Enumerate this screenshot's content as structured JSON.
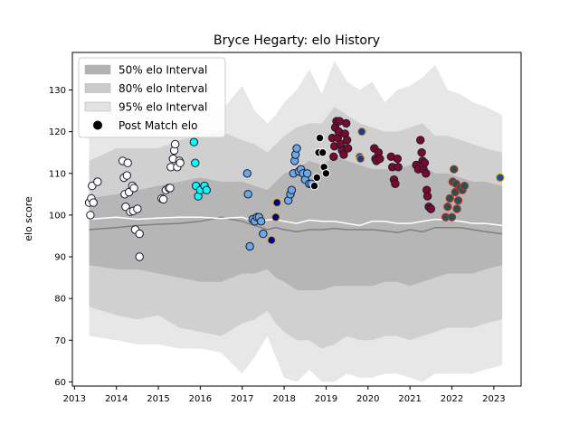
{
  "chart_data": {
    "type": "scatter",
    "title": "Bryce Hegarty: elo History",
    "xlabel": "",
    "ylabel": "elo score",
    "xlim": [
      2012.95,
      2023.65
    ],
    "ylim": [
      59,
      139
    ],
    "xticks": [
      2013,
      2014,
      2015,
      2016,
      2017,
      2018,
      2019,
      2020,
      2021,
      2022,
      2023
    ],
    "yticks": [
      60,
      70,
      80,
      90,
      100,
      110,
      120,
      130
    ],
    "grid": false,
    "legend_position": "top-left",
    "legend": [
      {
        "label": "50% elo Interval",
        "key": "band50"
      },
      {
        "label": "80% elo Interval",
        "key": "band80"
      },
      {
        "label": "95% elo Interval",
        "key": "band95"
      },
      {
        "label": "Post Match elo",
        "key": "marker"
      }
    ],
    "colors": {
      "band95": "#e3e3e3",
      "band80": "#cbcbcb",
      "band50": "#b2b2b2",
      "median_line": "#808080",
      "mean_line": "#ffffff",
      "marker_edge_default": "#1a1a2e",
      "marker_edge_alt": "#d4a017"
    },
    "bands": {
      "x": [
        2013.35,
        2014.0,
        2014.5,
        2015.0,
        2015.5,
        2016.0,
        2016.5,
        2017.0,
        2017.3,
        2017.6,
        2017.8,
        2018.0,
        2018.3,
        2018.6,
        2018.9,
        2019.2,
        2019.5,
        2019.8,
        2020.1,
        2020.4,
        2020.7,
        2021.0,
        2021.3,
        2021.6,
        2021.9,
        2022.2,
        2022.5,
        2022.8,
        2023.2
      ],
      "band95_upper": [
        123,
        126,
        125,
        122,
        126,
        128,
        125,
        131,
        125,
        122,
        124,
        127,
        130,
        135,
        129,
        137,
        132,
        130,
        132,
        127,
        130,
        131,
        133,
        136,
        130,
        129,
        127,
        126,
        124
      ],
      "band95_lower": [
        71,
        70,
        69,
        69,
        68,
        68,
        67,
        62,
        66,
        71,
        66,
        61,
        60,
        63,
        60,
        60,
        62,
        61,
        61,
        62,
        62,
        61,
        60,
        62,
        62,
        62,
        62,
        63,
        64
      ],
      "band80_upper": [
        113,
        116,
        116,
        116,
        118,
        119,
        120,
        118,
        117,
        115,
        117,
        119,
        121,
        122,
        122,
        126,
        124,
        122,
        121,
        120,
        120,
        121,
        122,
        119,
        119,
        118,
        117,
        116,
        115
      ],
      "band80_lower": [
        78,
        76,
        75,
        76,
        73,
        72,
        71,
        74,
        75,
        77,
        74,
        72,
        70,
        70,
        68,
        69,
        71,
        70,
        70,
        71,
        71,
        70,
        71,
        72,
        73,
        73,
        73,
        74,
        75
      ],
      "band50_upper": [
        104,
        105,
        106,
        107,
        108,
        109,
        108,
        108,
        107,
        106,
        108,
        110,
        111,
        113,
        112,
        114,
        113,
        112,
        111,
        111,
        111,
        112,
        112,
        110,
        110,
        109,
        108,
        108,
        107
      ],
      "band50_lower": [
        88,
        87,
        87,
        86,
        85,
        84,
        84,
        86,
        86,
        87,
        85,
        84,
        82,
        82,
        82,
        83,
        83,
        83,
        83,
        84,
        84,
        83,
        84,
        85,
        86,
        86,
        86,
        87,
        88
      ]
    },
    "median_line": {
      "x": [
        2013.35,
        2014.0,
        2014.5,
        2015.0,
        2015.5,
        2016.0,
        2016.5,
        2017.0,
        2017.3,
        2017.6,
        2017.8,
        2018.0,
        2018.3,
        2018.6,
        2018.9,
        2019.2,
        2019.5,
        2019.8,
        2020.1,
        2020.4,
        2020.7,
        2021.0,
        2021.3,
        2021.6,
        2021.9,
        2022.2,
        2022.5,
        2022.8,
        2023.2
      ],
      "y": [
        96.5,
        97,
        97.5,
        97.8,
        98,
        98.5,
        99.5,
        98.5,
        97.5,
        96.5,
        97,
        96.5,
        96,
        96.5,
        96.5,
        96.8,
        96.5,
        96.5,
        96.5,
        96.2,
        95.8,
        96.5,
        96,
        97,
        97,
        97,
        96.5,
        96,
        95.5
      ]
    },
    "mean_line": {
      "x": [
        2013.35,
        2014.0,
        2014.5,
        2015.0,
        2015.5,
        2016.0,
        2016.5,
        2017.0,
        2017.3,
        2017.6,
        2017.8,
        2018.0,
        2018.3,
        2018.6,
        2018.9,
        2019.2,
        2019.5,
        2019.8,
        2020.1,
        2020.4,
        2020.7,
        2021.0,
        2021.3,
        2021.6,
        2021.9,
        2022.2,
        2022.5,
        2022.8,
        2023.2
      ],
      "y": [
        99,
        99.5,
        99,
        99.3,
        99.5,
        99.5,
        99.2,
        99.5,
        98.5,
        98.8,
        99,
        98.5,
        98,
        98.8,
        98.5,
        98.5,
        98,
        97.5,
        98.5,
        98.5,
        98,
        98,
        98.5,
        99,
        98.8,
        98.5,
        98,
        98,
        97.5
      ]
    },
    "series": [
      {
        "color": "#ffffff",
        "points": [
          [
            2013.35,
            103
          ],
          [
            2013.38,
            100
          ],
          [
            2013.4,
            104
          ],
          [
            2013.42,
            107
          ],
          [
            2013.45,
            103
          ],
          [
            2013.55,
            108
          ],
          [
            2014.15,
            113
          ],
          [
            2014.18,
            109
          ],
          [
            2014.2,
            105
          ],
          [
            2014.22,
            102
          ],
          [
            2014.25,
            109.5
          ],
          [
            2014.27,
            112.5
          ],
          [
            2014.3,
            105.5
          ],
          [
            2014.33,
            100.8
          ],
          [
            2014.38,
            107
          ],
          [
            2014.4,
            101
          ],
          [
            2014.42,
            106.5
          ],
          [
            2014.45,
            96.5
          ],
          [
            2014.5,
            101.5
          ],
          [
            2014.55,
            95.5
          ],
          [
            2014.55,
            90
          ],
          [
            2015.08,
            104
          ],
          [
            2015.12,
            103.8
          ],
          [
            2015.18,
            106
          ],
          [
            2015.25,
            106.5
          ],
          [
            2015.28,
            106.5
          ],
          [
            2015.3,
            111.5
          ],
          [
            2015.35,
            113.5
          ],
          [
            2015.38,
            115.5
          ],
          [
            2015.4,
            117
          ],
          [
            2015.45,
            111.5
          ],
          [
            2015.5,
            113
          ],
          [
            2015.52,
            112.5
          ]
        ]
      },
      {
        "color": "#00ffff",
        "points": [
          [
            2015.85,
            117.5
          ],
          [
            2015.88,
            112.5
          ],
          [
            2015.9,
            107
          ],
          [
            2015.95,
            104.5
          ],
          [
            2016.0,
            106
          ],
          [
            2016.1,
            107
          ],
          [
            2016.15,
            106
          ]
        ]
      },
      {
        "color": "#6aa8e8",
        "points": [
          [
            2017.12,
            110
          ],
          [
            2017.14,
            105
          ],
          [
            2017.18,
            92.5
          ],
          [
            2017.25,
            99
          ],
          [
            2017.3,
            98.5
          ],
          [
            2017.35,
            99.5
          ],
          [
            2017.4,
            99.5
          ],
          [
            2017.45,
            98.5
          ],
          [
            2017.5,
            95.5
          ],
          [
            2018.1,
            103.5
          ],
          [
            2018.15,
            105
          ],
          [
            2018.18,
            106
          ],
          [
            2018.22,
            110
          ],
          [
            2018.25,
            113
          ],
          [
            2018.27,
            114.5
          ],
          [
            2018.3,
            116
          ],
          [
            2018.35,
            110.5
          ],
          [
            2018.4,
            111
          ],
          [
            2018.45,
            110
          ],
          [
            2018.5,
            108.5
          ],
          [
            2018.55,
            110
          ],
          [
            2018.6,
            107.5
          ],
          [
            2018.65,
            107.5
          ]
        ]
      },
      {
        "color": "#00008b",
        "edge": "#d4a017",
        "points": [
          [
            2017.7,
            94
          ],
          [
            2017.8,
            99.5
          ],
          [
            2017.83,
            103
          ]
        ]
      },
      {
        "color": "#000000",
        "edge": "#ffffff",
        "points": [
          [
            2018.72,
            107
          ],
          [
            2018.78,
            109
          ],
          [
            2018.82,
            115
          ],
          [
            2018.85,
            118.5
          ],
          [
            2018.92,
            115
          ],
          [
            2018.95,
            111.5
          ],
          [
            2019.0,
            110
          ]
        ]
      },
      {
        "color": "#7b0a2a",
        "points": [
          [
            2019.15,
            118.5
          ],
          [
            2019.18,
            114
          ],
          [
            2019.2,
            116.5
          ],
          [
            2019.22,
            121
          ],
          [
            2019.25,
            122.5
          ],
          [
            2019.28,
            118.5
          ],
          [
            2019.3,
            120
          ],
          [
            2019.32,
            122.5
          ],
          [
            2019.35,
            117
          ],
          [
            2019.38,
            115.5
          ],
          [
            2019.42,
            114.5
          ],
          [
            2019.45,
            119.5
          ],
          [
            2019.48,
            122
          ],
          [
            2019.5,
            118
          ],
          [
            2019.52,
            116
          ],
          [
            2020.15,
            116
          ],
          [
            2020.18,
            113.5
          ],
          [
            2020.2,
            113
          ],
          [
            2020.25,
            115
          ],
          [
            2020.28,
            113.5
          ],
          [
            2020.55,
            114
          ],
          [
            2020.58,
            111.5
          ],
          [
            2020.62,
            108.5
          ],
          [
            2020.65,
            107.5
          ],
          [
            2020.7,
            113.5
          ],
          [
            2020.72,
            111.5
          ],
          [
            2021.15,
            112
          ],
          [
            2021.2,
            111
          ],
          [
            2021.25,
            118
          ],
          [
            2021.28,
            115
          ],
          [
            2021.3,
            113
          ],
          [
            2021.32,
            111
          ],
          [
            2021.35,
            112.5
          ],
          [
            2021.38,
            110
          ],
          [
            2021.4,
            106
          ],
          [
            2021.42,
            104.5
          ],
          [
            2021.45,
            102
          ],
          [
            2021.5,
            101.5
          ]
        ]
      },
      {
        "color": "#2f4f4f",
        "edge": "#c0392b",
        "points": [
          [
            2021.85,
            99.5
          ],
          [
            2021.9,
            102
          ],
          [
            2021.95,
            104
          ],
          [
            2022.0,
            99.5
          ],
          [
            2022.02,
            108
          ],
          [
            2022.05,
            111
          ],
          [
            2022.08,
            105.5
          ],
          [
            2022.1,
            107.5
          ],
          [
            2022.12,
            101.5
          ],
          [
            2022.15,
            103.5
          ],
          [
            2022.2,
            106.5
          ],
          [
            2022.25,
            106
          ],
          [
            2022.3,
            107
          ]
        ]
      },
      {
        "color": "#1e3a8a",
        "edge": "#d4a017",
        "points": [
          [
            2019.8,
            114
          ],
          [
            2019.82,
            113.5
          ],
          [
            2019.85,
            120
          ]
        ]
      },
      {
        "color": "#1f4e9c",
        "edge": "#d4a017",
        "points": [
          [
            2023.15,
            109
          ]
        ]
      }
    ]
  }
}
